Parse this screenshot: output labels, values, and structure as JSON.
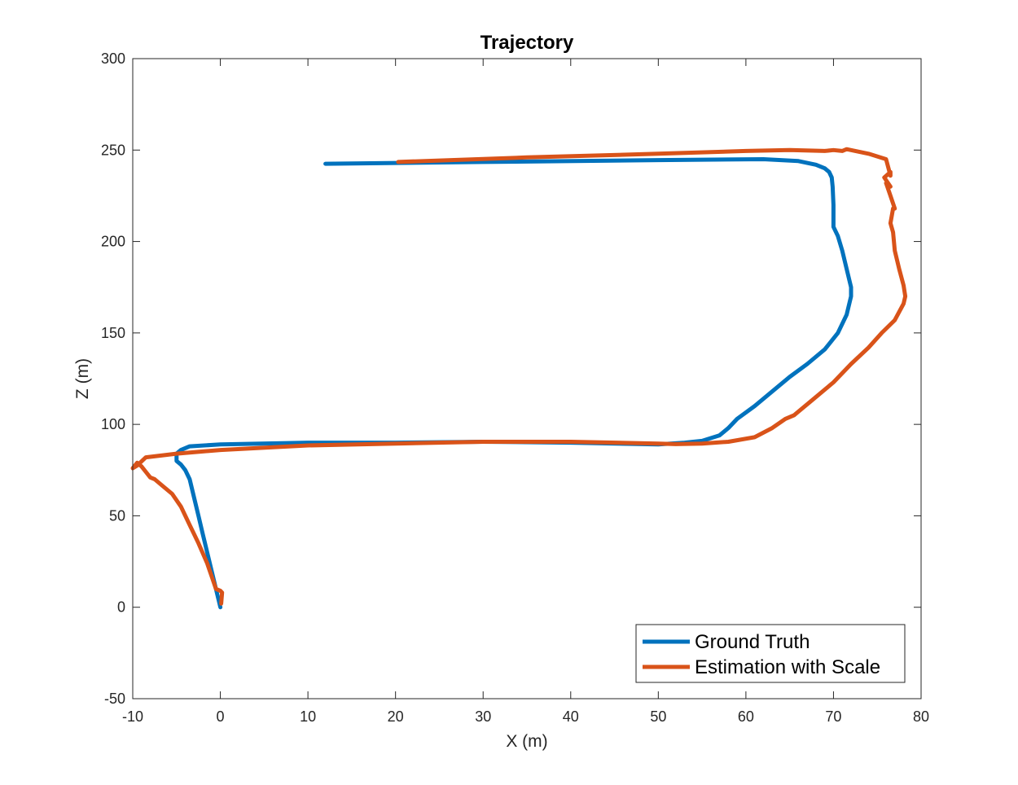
{
  "chart_data": {
    "type": "line",
    "title": "Trajectory",
    "xlabel": "X (m)",
    "ylabel": "Z (m)",
    "xlim": [
      -10,
      80
    ],
    "ylim": [
      -50,
      300
    ],
    "xticks": [
      "-10",
      "0",
      "10",
      "20",
      "30",
      "40",
      "50",
      "60",
      "70",
      "80"
    ],
    "yticks": [
      "-50",
      "0",
      "50",
      "100",
      "150",
      "200",
      "250",
      "300"
    ],
    "grid": false,
    "legend_position": "bottom-right",
    "series": [
      {
        "name": "Ground Truth",
        "color": "#0072BD",
        "x": [
          0,
          -0.5,
          -1,
          -1.5,
          -2,
          -2.5,
          -3,
          -3.5,
          -4,
          -4.5,
          -5,
          -5,
          -4.5,
          -3.5,
          0,
          10,
          20,
          30,
          40,
          50,
          53,
          55,
          57,
          58,
          59,
          61,
          63,
          65,
          67,
          69,
          70.5,
          71.5,
          72,
          72,
          71.5,
          71,
          70.5,
          70,
          70,
          70,
          69.9,
          69.8,
          69.5,
          69,
          68,
          66,
          62,
          50,
          30,
          12
        ],
        "y": [
          0,
          10,
          20,
          30,
          40,
          50,
          60,
          70,
          75,
          78,
          80,
          84,
          86,
          88,
          89,
          90,
          90,
          90.5,
          90,
          89,
          90,
          91,
          94,
          98,
          103,
          110,
          118,
          126,
          133,
          141,
          150,
          160,
          170,
          175,
          185,
          195,
          203,
          208,
          213,
          220,
          230,
          235,
          238,
          240,
          242,
          244,
          245,
          244.5,
          243.5,
          242.5
        ]
      },
      {
        "name": "Estimation with Scale",
        "color": "#D95319",
        "x": [
          0.1,
          0.2,
          0,
          -0.5,
          -1,
          -1.5,
          -2.5,
          -3.5,
          -4.5,
          -5.5,
          -6.5,
          -7.5,
          -8,
          -8.5,
          -9,
          -9.5,
          -10,
          -9.5,
          -8.5,
          -5,
          0,
          10,
          20,
          30,
          40,
          50,
          52,
          55,
          58,
          61,
          63,
          64.5,
          65.5,
          67.5,
          70,
          72,
          74,
          75.5,
          77,
          78,
          78.2,
          78,
          77.5,
          77,
          76.8,
          76.5,
          76.8,
          77,
          76.5,
          76,
          76.5,
          75.8,
          76.5,
          76.5,
          76,
          74,
          72.5,
          71.5,
          71,
          70,
          69,
          65,
          60,
          50,
          35,
          20.3
        ],
        "y": [
          2,
          8,
          9,
          10,
          17,
          24,
          35,
          45,
          55,
          62,
          66,
          70,
          71,
          74,
          77,
          79,
          76,
          77.5,
          82,
          84,
          86,
          88.5,
          89.5,
          90.5,
          90.5,
          89.5,
          89.2,
          89.5,
          90.5,
          93,
          98,
          103,
          105,
          113,
          123,
          133,
          142,
          150,
          157,
          166,
          170,
          176,
          185,
          195,
          205,
          210,
          218,
          218,
          225,
          232,
          230,
          235,
          238,
          236,
          245,
          248,
          249.5,
          250.5,
          249.5,
          250,
          249.5,
          250,
          249.5,
          248,
          246,
          243.5
        ]
      }
    ]
  }
}
